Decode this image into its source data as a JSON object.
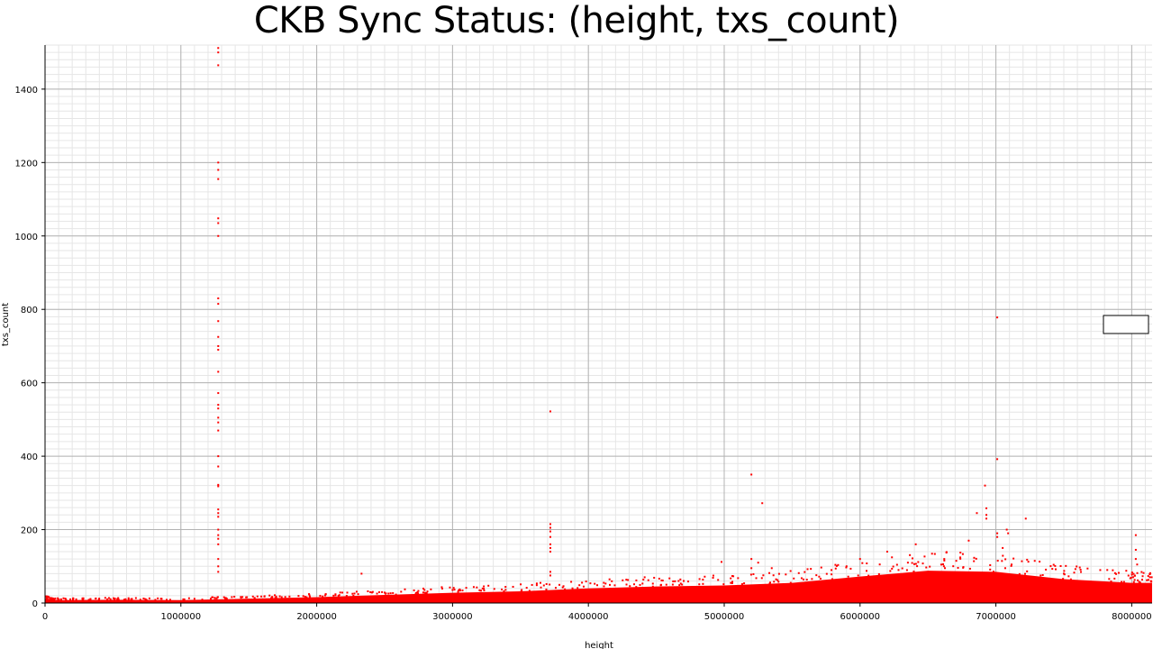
{
  "chart_data": {
    "type": "scatter",
    "title": "CKB Sync Status: (height, txs_count)",
    "xlabel": "height",
    "ylabel": "txs_count",
    "xlim": [
      0,
      8150000
    ],
    "ylim": [
      0,
      1520
    ],
    "x_ticks": [
      0,
      1000000,
      2000000,
      3000000,
      4000000,
      5000000,
      6000000,
      7000000,
      8000000
    ],
    "y_ticks": [
      0,
      200,
      400,
      600,
      800,
      1000,
      1200,
      1400
    ],
    "grid": true,
    "point_color": "#ff0000",
    "series": [
      {
        "values": [
          [
            1275000,
            1512
          ],
          [
            1275000,
            1500
          ],
          [
            1275000,
            1465
          ],
          [
            1275000,
            1200
          ],
          [
            1275000,
            1180
          ],
          [
            1275000,
            1155
          ],
          [
            1275000,
            1048
          ],
          [
            1275000,
            1035
          ],
          [
            1275000,
            1000
          ],
          [
            1275000,
            830
          ],
          [
            1275000,
            815
          ],
          [
            1275000,
            768
          ],
          [
            1275000,
            725
          ],
          [
            1275000,
            700
          ],
          [
            1275000,
            690
          ],
          [
            1275000,
            630
          ],
          [
            1275000,
            572
          ],
          [
            1275000,
            540
          ],
          [
            1275000,
            530
          ],
          [
            1275000,
            505
          ],
          [
            1275000,
            492
          ],
          [
            1275000,
            470
          ],
          [
            1275000,
            400
          ],
          [
            1275000,
            372
          ],
          [
            1275000,
            322
          ],
          [
            1275000,
            318
          ],
          [
            1275000,
            255
          ],
          [
            1275000,
            245
          ],
          [
            1275000,
            235
          ],
          [
            1275000,
            200
          ],
          [
            1275000,
            185
          ],
          [
            1275000,
            175
          ],
          [
            1275000,
            160
          ],
          [
            1275000,
            120
          ],
          [
            1275000,
            100
          ],
          [
            1275000,
            85
          ],
          [
            3720000,
            522
          ],
          [
            3720000,
            215
          ],
          [
            3720000,
            205
          ],
          [
            3720000,
            195
          ],
          [
            3720000,
            180
          ],
          [
            3720000,
            160
          ],
          [
            3720000,
            150
          ],
          [
            3720000,
            140
          ],
          [
            3720000,
            85
          ],
          [
            3720000,
            75
          ],
          [
            2330000,
            80
          ],
          [
            5200000,
            350
          ],
          [
            5280000,
            272
          ],
          [
            5200000,
            120
          ],
          [
            5200000,
            95
          ],
          [
            4980000,
            112
          ],
          [
            5250000,
            110
          ],
          [
            5350000,
            95
          ],
          [
            7010000,
            778
          ],
          [
            7010000,
            392
          ],
          [
            7010000,
            190
          ],
          [
            7010000,
            180
          ],
          [
            6920000,
            320
          ],
          [
            6930000,
            258
          ],
          [
            6930000,
            240
          ],
          [
            6930000,
            230
          ],
          [
            6860000,
            245
          ],
          [
            7220000,
            230
          ],
          [
            7080000,
            200
          ],
          [
            7090000,
            190
          ],
          [
            6410000,
            160
          ],
          [
            6620000,
            120
          ],
          [
            6800000,
            170
          ],
          [
            7050000,
            150
          ],
          [
            8030000,
            185
          ],
          [
            8030000,
            145
          ],
          [
            8030000,
            120
          ],
          [
            8040000,
            105
          ],
          [
            7820000,
            90
          ],
          [
            7500000,
            80
          ],
          [
            6200000,
            140
          ],
          [
            6000000,
            120
          ]
        ]
      }
    ],
    "dense_band": [
      [
        0,
        12
      ],
      [
        100000,
        8
      ],
      [
        500000,
        9
      ],
      [
        1000000,
        8
      ],
      [
        1500000,
        12
      ],
      [
        2000000,
        16
      ],
      [
        2500000,
        22
      ],
      [
        3000000,
        28
      ],
      [
        3500000,
        32
      ],
      [
        4000000,
        40
      ],
      [
        4500000,
        45
      ],
      [
        5000000,
        48
      ],
      [
        5500000,
        55
      ],
      [
        6000000,
        72
      ],
      [
        6500000,
        88
      ],
      [
        7000000,
        85
      ],
      [
        7500000,
        65
      ],
      [
        8000000,
        55
      ],
      [
        8150000,
        55
      ]
    ]
  }
}
